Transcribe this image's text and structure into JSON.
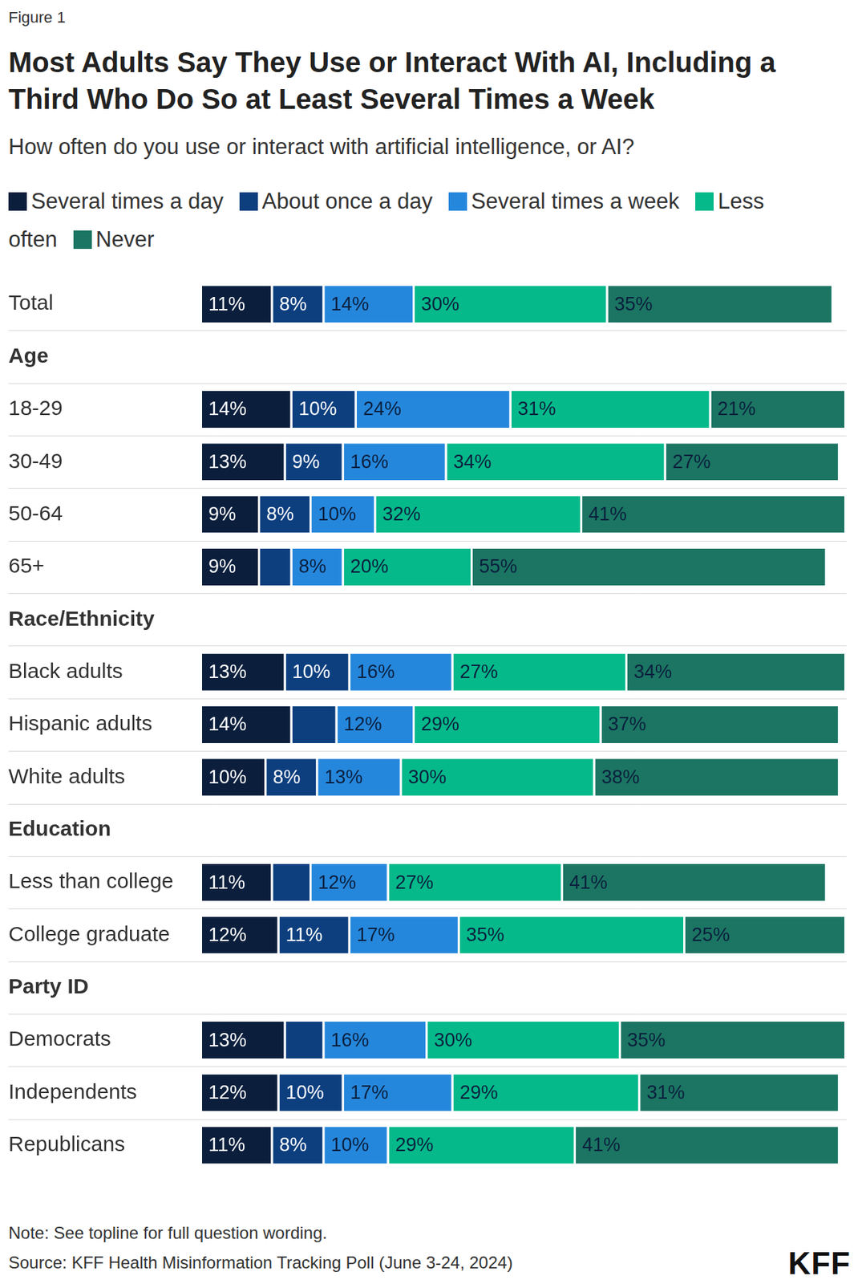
{
  "chart_data": {
    "type": "bar",
    "orientation": "horizontal",
    "stacked": true,
    "data_labels": true,
    "tick_labels": "y",
    "grid": false,
    "figure_label": "Figure 1",
    "title": "Most Adults Say They Use or Interact With AI, Including a Third Who Do So at Least Several Times a Week",
    "subtitle": "How often do you use or interact with artificial intelligence, or AI?",
    "notes": [
      "Note: See topline for full question wording.",
      "Source: KFF Health Misinformation Tracking Poll (June 3-24, 2024)"
    ],
    "logo": "KFF",
    "xlim": [
      0,
      100
    ],
    "group_headers": [
      "Age",
      "Race/Ethnicity",
      "Education",
      "Party ID"
    ],
    "categories": [
      "Total",
      "Age",
      "18-29",
      "30-49",
      "50-64",
      "65+",
      "Race/Ethnicity",
      "Black adults",
      "Hispanic adults",
      "White adults",
      "Education",
      "Less than college",
      "College graduate",
      "Party ID",
      "Democrats",
      "Independents",
      "Republicans"
    ],
    "series": [
      {
        "name": "Several times a day",
        "color": "#0b1f3d",
        "values": [
          11,
          null,
          14,
          13,
          9,
          9,
          null,
          13,
          14,
          10,
          null,
          11,
          12,
          null,
          13,
          12,
          11
        ],
        "value_labels": [
          "11%",
          null,
          "14%",
          "13%",
          "9%",
          "9%",
          null,
          "13%",
          "14%",
          "10%",
          null,
          "11%",
          "12%",
          null,
          "13%",
          "12%",
          "11%"
        ]
      },
      {
        "name": "About once a day",
        "color": "#0d3f7f",
        "values": [
          8,
          null,
          10,
          9,
          8,
          5,
          null,
          10,
          7,
          8,
          null,
          6,
          11,
          null,
          6,
          10,
          8
        ],
        "value_labels": [
          "8%",
          null,
          "10%",
          "9%",
          "8%",
          null,
          null,
          "10%",
          null,
          "8%",
          null,
          null,
          "11%",
          null,
          null,
          "10%",
          "8%"
        ]
      },
      {
        "name": "Several times a week",
        "color": "#2587dc",
        "values": [
          14,
          null,
          24,
          16,
          10,
          8,
          null,
          16,
          12,
          13,
          null,
          12,
          17,
          null,
          16,
          17,
          10
        ],
        "value_labels": [
          "14%",
          null,
          "24%",
          "16%",
          "10%",
          "8%",
          null,
          "16%",
          "12%",
          "13%",
          null,
          "12%",
          "17%",
          null,
          "16%",
          "17%",
          "10%"
        ]
      },
      {
        "name": "Less often",
        "color": "#05b98a",
        "values": [
          30,
          null,
          31,
          34,
          32,
          20,
          null,
          27,
          29,
          30,
          null,
          27,
          35,
          null,
          30,
          29,
          29
        ],
        "value_labels": [
          "30%",
          null,
          "31%",
          "34%",
          "32%",
          "20%",
          null,
          "27%",
          "29%",
          "30%",
          null,
          "27%",
          "35%",
          null,
          "30%",
          "29%",
          "29%"
        ]
      },
      {
        "name": "Never",
        "color": "#1b7562",
        "values": [
          35,
          null,
          21,
          27,
          41,
          55,
          null,
          34,
          37,
          38,
          null,
          41,
          25,
          null,
          35,
          31,
          41
        ],
        "value_labels": [
          "35%",
          null,
          "21%",
          "27%",
          "41%",
          "55%",
          null,
          "34%",
          "37%",
          "38%",
          null,
          "41%",
          "25%",
          null,
          "35%",
          "31%",
          "41%"
        ]
      }
    ]
  }
}
